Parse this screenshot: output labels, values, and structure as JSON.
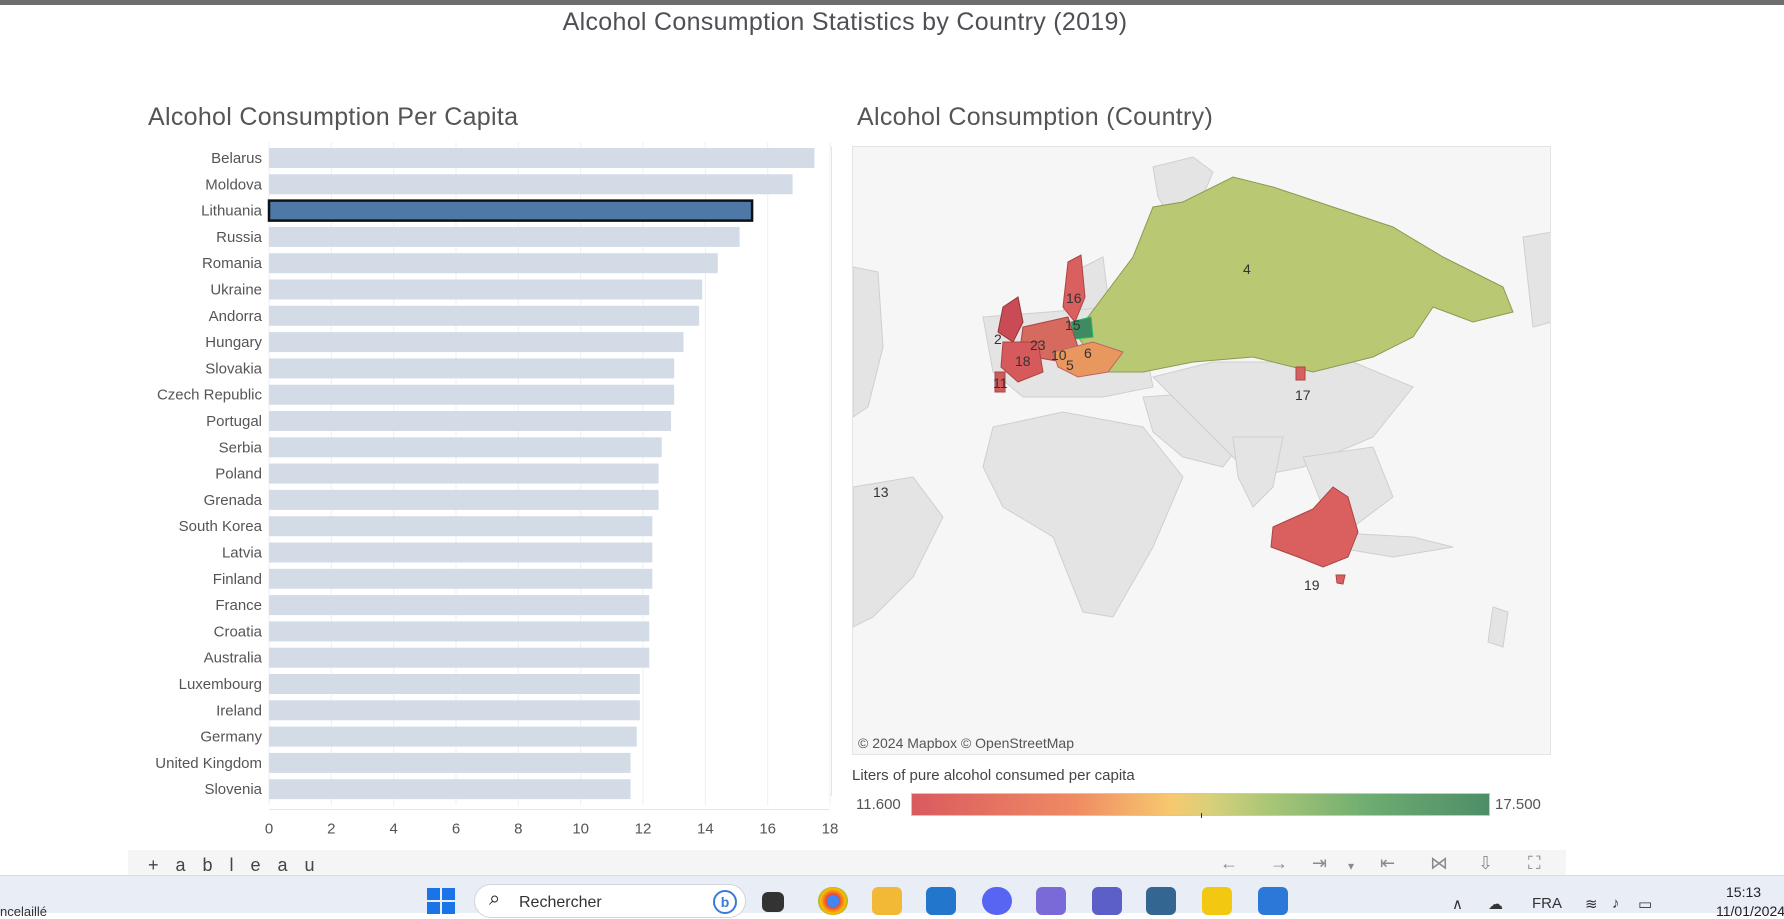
{
  "dashboard": {
    "title": "Alcohol Consumption Statistics by Country (2019)"
  },
  "bar_sheet": {
    "title": "Alcohol Consumption Per Capita",
    "selected": "Lithuania"
  },
  "chart_data": {
    "type": "bar",
    "orientation": "horizontal",
    "categories": [
      "Belarus",
      "Moldova",
      "Lithuania",
      "Russia",
      "Romania",
      "Ukraine",
      "Andorra",
      "Hungary",
      "Slovakia",
      "Czech Republic",
      "Portugal",
      "Serbia",
      "Poland",
      "Grenada",
      "South Korea",
      "Latvia",
      "Finland",
      "France",
      "Croatia",
      "Australia",
      "Luxembourg",
      "Ireland",
      "Germany",
      "United Kingdom",
      "Slovenia"
    ],
    "values": [
      17.5,
      16.8,
      15.5,
      15.1,
      14.4,
      13.9,
      13.8,
      13.3,
      13.0,
      13.0,
      12.9,
      12.6,
      12.5,
      12.5,
      12.3,
      12.3,
      12.3,
      12.2,
      12.2,
      12.2,
      11.9,
      11.9,
      11.8,
      11.6,
      11.6
    ],
    "xticks": [
      "0",
      "2",
      "4",
      "6",
      "8",
      "10",
      "12",
      "14",
      "16",
      "18"
    ],
    "xlim": [
      0,
      18
    ],
    "colors": {
      "bar": "#d3dce6",
      "selected": "#4e79a7",
      "selected_border": "#111111"
    },
    "grid": true
  },
  "map_sheet": {
    "title": "Alcohol Consumption (Country)",
    "attribution": "© 2024 Mapbox  © OpenStreetMap",
    "labels": [
      {
        "text": "4",
        "region": "russia"
      },
      {
        "text": "16",
        "region": "finland"
      },
      {
        "text": "15",
        "region": "latvia"
      },
      {
        "text": "2",
        "region": "united-kingdom"
      },
      {
        "text": "23",
        "region": "germany"
      },
      {
        "text": "18",
        "region": "france"
      },
      {
        "text": "10",
        "region": "austria"
      },
      {
        "text": "6",
        "region": "romania"
      },
      {
        "text": "5",
        "region": "serbia"
      },
      {
        "text": "11",
        "region": "portugal"
      },
      {
        "text": "17",
        "region": "south-korea"
      },
      {
        "text": "13",
        "region": "grenada"
      },
      {
        "text": "19",
        "region": "australia"
      }
    ]
  },
  "legend": {
    "title": "Liters of pure alcohol consumed per capita",
    "min": "11.600",
    "max": "17.500"
  },
  "tableau": {
    "logo": "+ a b l e a u"
  },
  "taskbar": {
    "left_text": "ncelaillé",
    "search_placeholder": "Rechercher",
    "language": "FRA",
    "time": "15:13",
    "date": "11/01/2024"
  }
}
